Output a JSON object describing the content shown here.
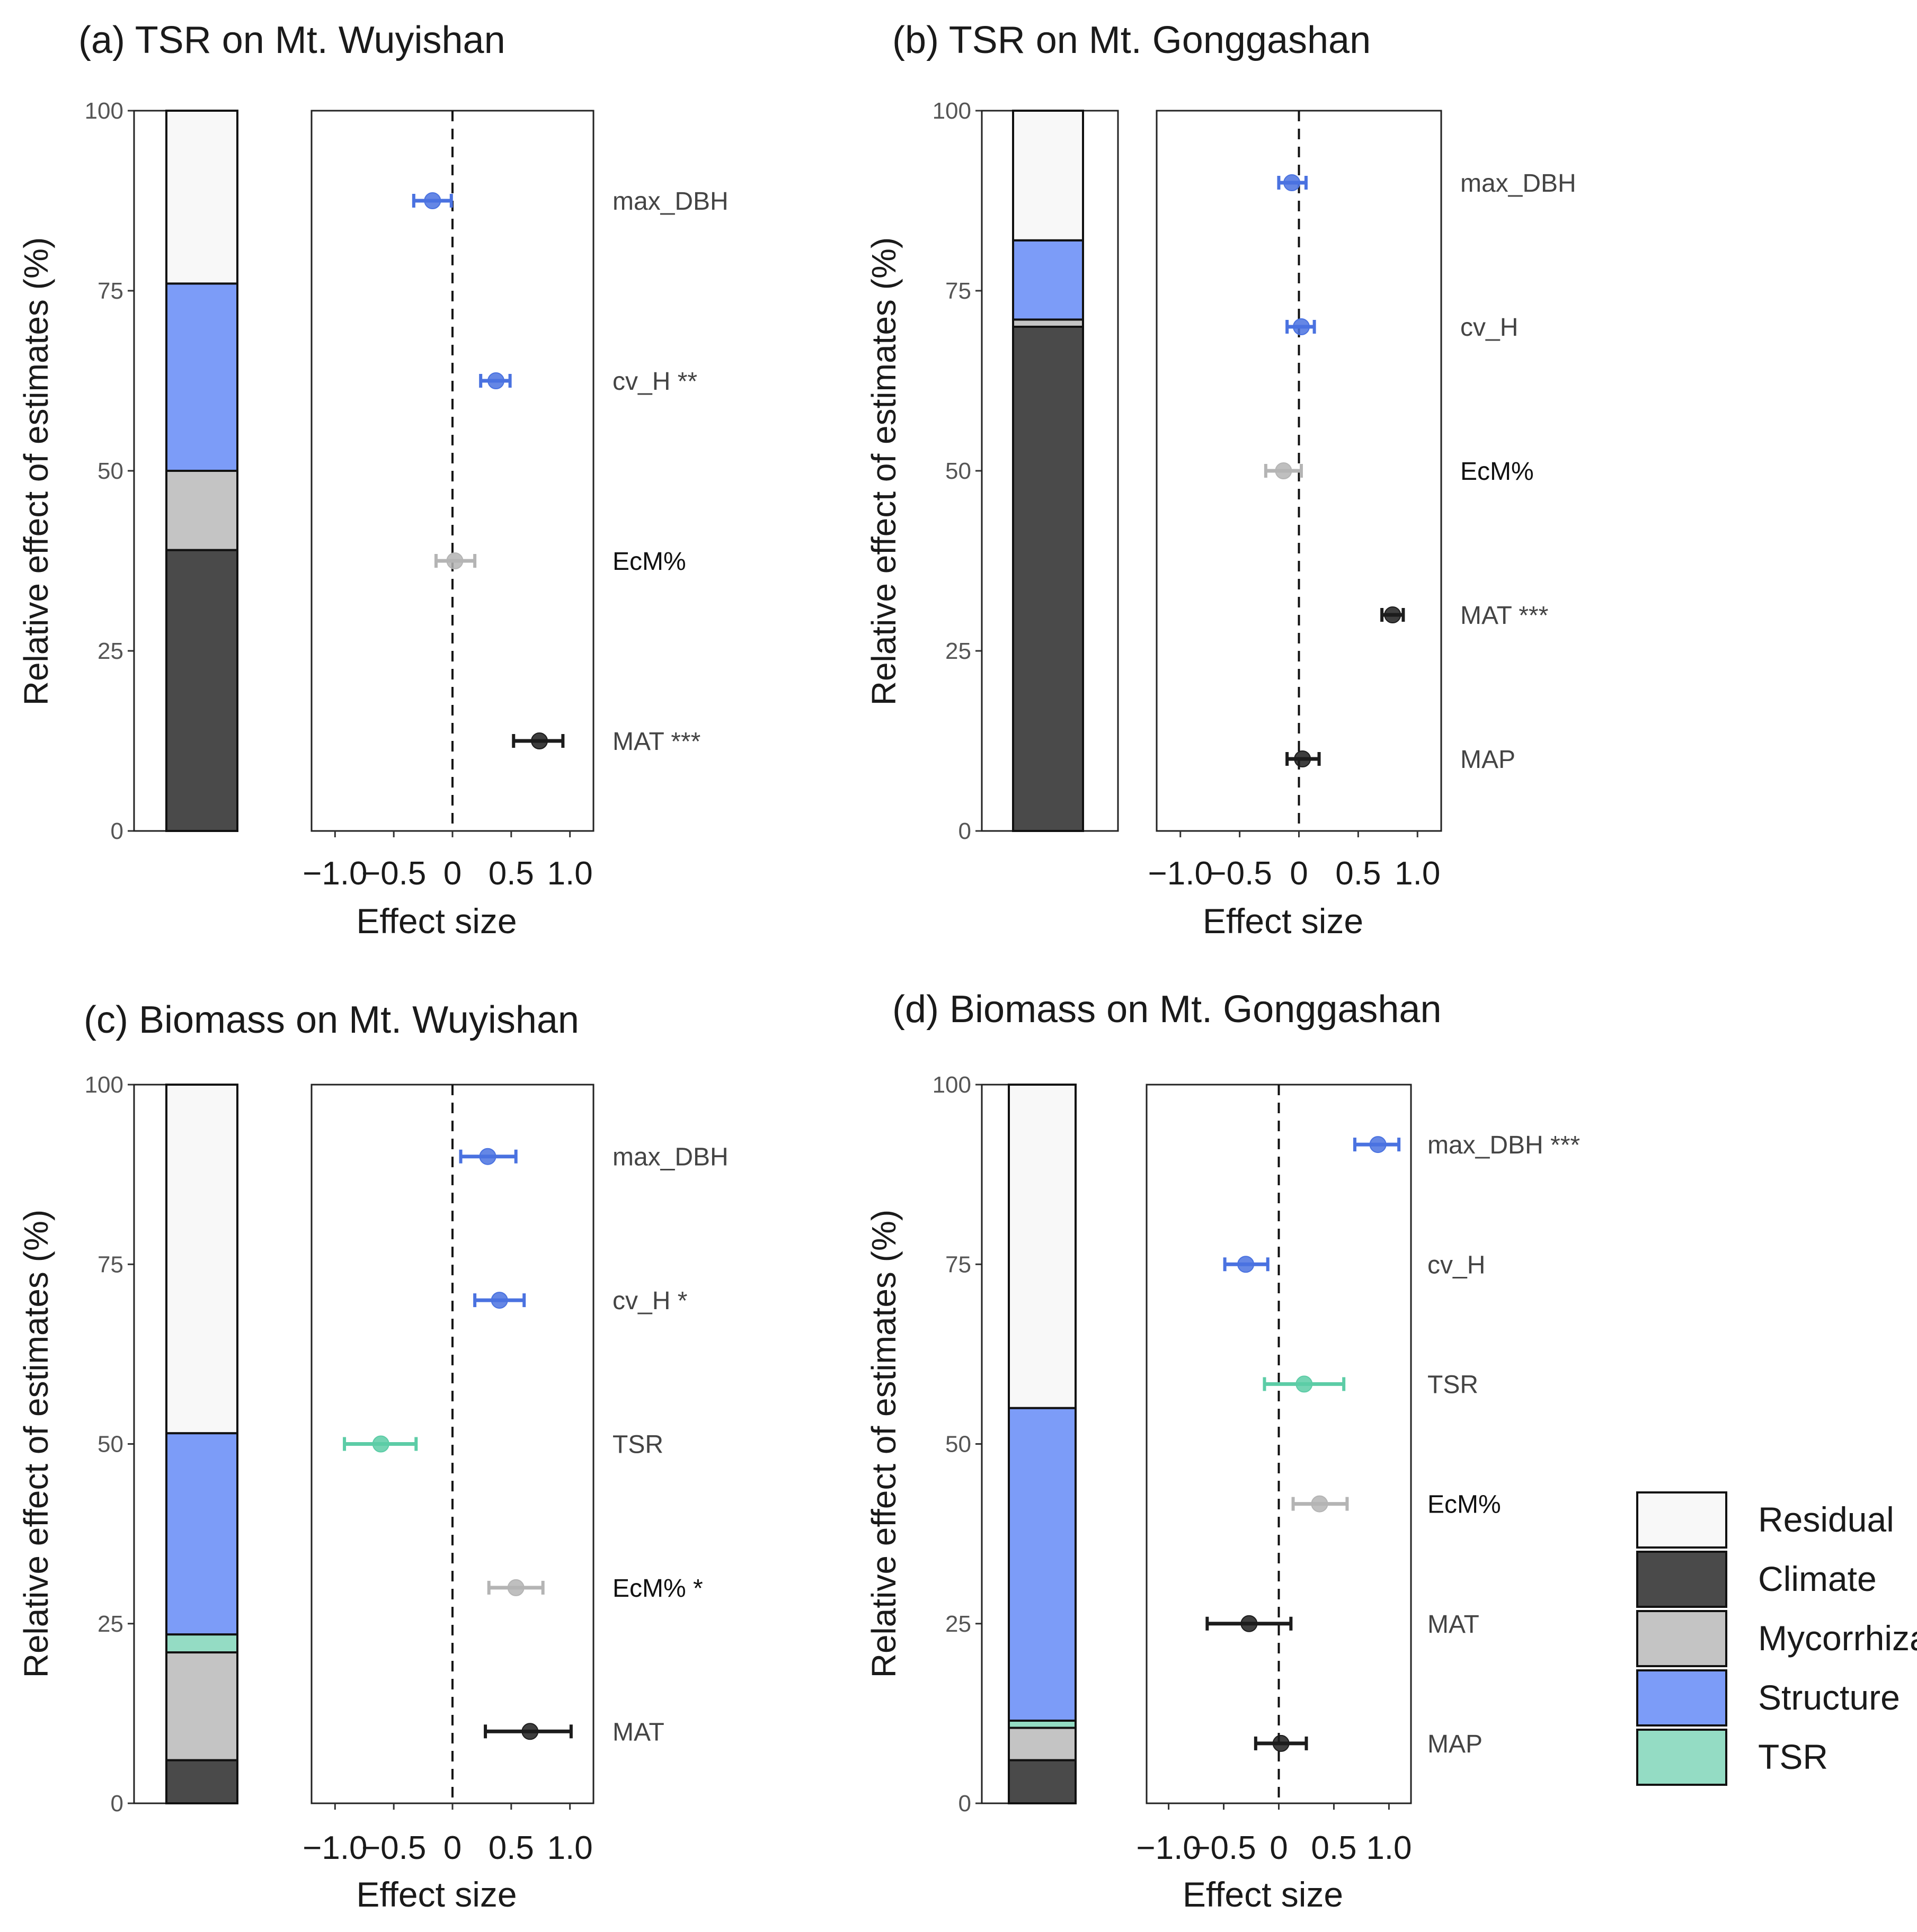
{
  "chart_data": [
    {
      "type": "bar",
      "panel": "a",
      "title": "(a) TSR on Mt. Wuyishan",
      "ylabel": "Relative effect of estimates (%)",
      "xlabel": "Effect size",
      "ylim": [
        0,
        100
      ],
      "yticks": [
        "0",
        "25",
        "50",
        "75",
        "100"
      ],
      "xlim": [
        -1.2,
        1.2
      ],
      "xticks": [
        {
          "value": -1.0,
          "label": "−1.0"
        },
        {
          "value": -0.5,
          "label": "−0.5"
        },
        {
          "value": 0,
          "label": "0"
        },
        {
          "value": 0.5,
          "label": "0.5"
        },
        {
          "value": 1.0,
          "label": "1.0"
        }
      ],
      "stack": [
        {
          "group": "Climate",
          "value": 39
        },
        {
          "group": "Mycorrhiza",
          "value": 11
        },
        {
          "group": "Structure",
          "value": 26
        },
        {
          "group": "Residual",
          "value": 24
        }
      ],
      "effects": [
        {
          "label": "max_DBH",
          "estimate": -0.17,
          "lo": -0.33,
          "hi": -0.01,
          "group": "Structure"
        },
        {
          "label": "cv_H **",
          "estimate": 0.37,
          "lo": 0.24,
          "hi": 0.49,
          "group": "Structure"
        },
        {
          "label": "EcM%",
          "estimate": 0.02,
          "lo": -0.14,
          "hi": 0.19,
          "group": "Mycorrhiza"
        },
        {
          "label": "MAT ***",
          "estimate": 0.74,
          "lo": 0.52,
          "hi": 0.94,
          "group": "Climate"
        }
      ]
    },
    {
      "type": "bar",
      "panel": "b",
      "title": "(b) TSR on Mt. Gonggashan",
      "ylabel": "Relative effect of estimates (%)",
      "xlabel": "Effect size",
      "ylim": [
        0,
        100
      ],
      "yticks": [
        "0",
        "25",
        "50",
        "75",
        "100"
      ],
      "xlim": [
        -1.2,
        1.2
      ],
      "xticks": [
        {
          "value": -1.0,
          "label": "−1.0"
        },
        {
          "value": -0.5,
          "label": "−0.5"
        },
        {
          "value": 0,
          "label": "0"
        },
        {
          "value": 0.5,
          "label": "0.5"
        },
        {
          "value": 1.0,
          "label": "1.0"
        }
      ],
      "stack": [
        {
          "group": "Climate",
          "value": 70
        },
        {
          "group": "Mycorrhiza",
          "value": 1
        },
        {
          "group": "Structure",
          "value": 11
        },
        {
          "group": "Residual",
          "value": 18
        }
      ],
      "effects": [
        {
          "label": "max_DBH",
          "estimate": -0.06,
          "lo": -0.17,
          "hi": 0.06,
          "group": "Structure"
        },
        {
          "label": "cv_H",
          "estimate": 0.02,
          "lo": -0.1,
          "hi": 0.13,
          "group": "Structure"
        },
        {
          "label": "EcM%",
          "estimate": -0.13,
          "lo": -0.28,
          "hi": 0.02,
          "group": "Mycorrhiza"
        },
        {
          "label": "MAT ***",
          "estimate": 0.79,
          "lo": 0.7,
          "hi": 0.88,
          "group": "Climate"
        },
        {
          "label": "MAP",
          "estimate": 0.03,
          "lo": -0.1,
          "hi": 0.17,
          "group": "Climate"
        }
      ]
    },
    {
      "type": "bar",
      "panel": "c",
      "title": "(c) Biomass on Mt. Wuyishan",
      "ylabel": "Relative effect of estimates (%)",
      "xlabel": "Effect size",
      "ylim": [
        0,
        100
      ],
      "yticks": [
        "0",
        "25",
        "50",
        "75",
        "100"
      ],
      "xlim": [
        -1.2,
        1.2
      ],
      "xticks": [
        {
          "value": -1.0,
          "label": "−1.0"
        },
        {
          "value": -0.5,
          "label": "−0.5"
        },
        {
          "value": 0,
          "label": "0"
        },
        {
          "value": 0.5,
          "label": "0.5"
        },
        {
          "value": 1.0,
          "label": "1.0"
        }
      ],
      "stack": [
        {
          "group": "Climate",
          "value": 6
        },
        {
          "group": "Mycorrhiza",
          "value": 15
        },
        {
          "group": "TSR",
          "value": 2.5
        },
        {
          "group": "Structure",
          "value": 28
        },
        {
          "group": "Residual",
          "value": 48.5
        }
      ],
      "effects": [
        {
          "label": "max_DBH",
          "estimate": 0.3,
          "lo": 0.07,
          "hi": 0.54,
          "group": "Structure"
        },
        {
          "label": "cv_H *",
          "estimate": 0.4,
          "lo": 0.19,
          "hi": 0.61,
          "group": "Structure"
        },
        {
          "label": "TSR",
          "estimate": -0.61,
          "lo": -0.92,
          "hi": -0.31,
          "group": "TSR"
        },
        {
          "label": "EcM% *",
          "estimate": 0.54,
          "lo": 0.31,
          "hi": 0.77,
          "group": "Mycorrhiza"
        },
        {
          "label": "MAT",
          "estimate": 0.66,
          "lo": 0.28,
          "hi": 1.01,
          "group": "Climate"
        }
      ]
    },
    {
      "type": "bar",
      "panel": "d",
      "title": "(d) Biomass on Mt. Gonggashan",
      "ylabel": "Relative effect of estimates (%)",
      "xlabel": "Effect size",
      "ylim": [
        0,
        100
      ],
      "yticks": [
        "0",
        "25",
        "50",
        "75",
        "100"
      ],
      "xlim": [
        -1.2,
        1.2
      ],
      "xticks": [
        {
          "value": -1.0,
          "label": "−1.0"
        },
        {
          "value": -0.5,
          "label": "−0.5"
        },
        {
          "value": 0,
          "label": "0"
        },
        {
          "value": 0.5,
          "label": "0.5"
        },
        {
          "value": 1.0,
          "label": "1.0"
        }
      ],
      "stack": [
        {
          "group": "Climate",
          "value": 6
        },
        {
          "group": "Mycorrhiza",
          "value": 4.5
        },
        {
          "group": "TSR",
          "value": 1
        },
        {
          "group": "Structure",
          "value": 43.5
        },
        {
          "group": "Residual",
          "value": 45
        }
      ],
      "effects": [
        {
          "label": "max_DBH ***",
          "estimate": 0.9,
          "lo": 0.69,
          "hi": 1.09,
          "group": "Structure"
        },
        {
          "label": "cv_H",
          "estimate": -0.3,
          "lo": -0.49,
          "hi": -0.1,
          "group": "Structure"
        },
        {
          "label": "TSR",
          "estimate": 0.23,
          "lo": -0.13,
          "hi": 0.59,
          "group": "TSR"
        },
        {
          "label": "EcM%",
          "estimate": 0.37,
          "lo": 0.13,
          "hi": 0.62,
          "group": "Mycorrhiza"
        },
        {
          "label": "MAT",
          "estimate": -0.27,
          "lo": -0.65,
          "hi": 0.11,
          "group": "Climate"
        },
        {
          "label": "MAP",
          "estimate": 0.02,
          "lo": -0.21,
          "hi": 0.25,
          "group": "Climate"
        }
      ]
    }
  ],
  "legend": [
    {
      "name": "Residual",
      "fill": "#f8f8f8"
    },
    {
      "name": "Climate",
      "fill": "#4a4a4a"
    },
    {
      "name": "Mycorrhiza",
      "fill": "#c4c4c4"
    },
    {
      "name": "Structure",
      "fill": "#7c9cf8"
    },
    {
      "name": "TSR",
      "fill": "#94dcc4"
    }
  ],
  "point_colors": {
    "Climate": "#1c1c1c",
    "Mycorrhiza": "#b4b4b4",
    "Structure": "#4a72e0",
    "TSR": "#5ccca6",
    "Residual": "#f8f8f8"
  }
}
